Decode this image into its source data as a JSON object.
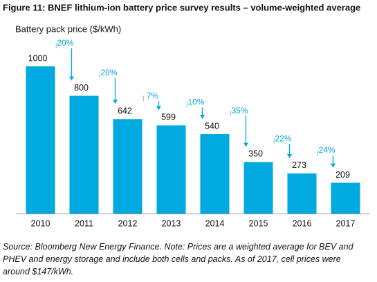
{
  "chart_data": {
    "type": "bar",
    "title": "Figure 11: BNEF lithium-ion battery price survey results – volume-weighted average",
    "y_label": "Battery pack price ($/kWh)",
    "categories": [
      "2010",
      "2011",
      "2012",
      "2013",
      "2014",
      "2015",
      "2016",
      "2017"
    ],
    "values": [
      1000,
      800,
      642,
      599,
      540,
      350,
      273,
      209
    ],
    "color": "#00a9e0",
    "ylim": [
      0,
      1000
    ],
    "annotations": [
      "20%",
      "20%",
      "7%",
      "10%",
      "35%",
      "22%",
      "24%"
    ],
    "source": "Source: Bloomberg New Energy Finance. Note: Prices are a weighted average for BEV and PHEV and energy storage and include both cells and packs. As of 2017, cell prices were around $147/kWh."
  }
}
